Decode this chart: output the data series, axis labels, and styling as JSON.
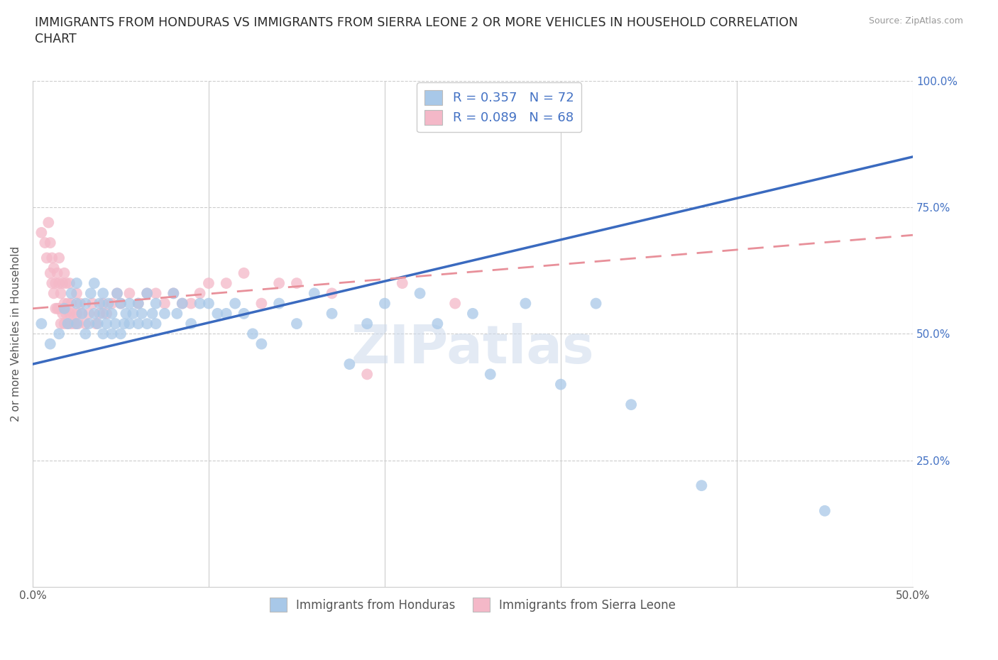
{
  "title_line1": "IMMIGRANTS FROM HONDURAS VS IMMIGRANTS FROM SIERRA LEONE 2 OR MORE VEHICLES IN HOUSEHOLD CORRELATION",
  "title_line2": "CHART",
  "source": "Source: ZipAtlas.com",
  "ylabel": "2 or more Vehicles in Household",
  "xlim": [
    0.0,
    0.5
  ],
  "ylim": [
    0.0,
    1.0
  ],
  "blue_color": "#a8c8e8",
  "pink_color": "#f4b8c8",
  "blue_line_color": "#3a6abf",
  "pink_line_color": "#e8909a",
  "watermark": "ZIPatlas",
  "honduras_x": [
    0.005,
    0.01,
    0.015,
    0.018,
    0.02,
    0.022,
    0.025,
    0.025,
    0.025,
    0.028,
    0.03,
    0.03,
    0.032,
    0.033,
    0.035,
    0.035,
    0.037,
    0.038,
    0.04,
    0.04,
    0.04,
    0.042,
    0.043,
    0.045,
    0.045,
    0.047,
    0.048,
    0.05,
    0.05,
    0.052,
    0.053,
    0.055,
    0.055,
    0.057,
    0.06,
    0.06,
    0.062,
    0.065,
    0.065,
    0.068,
    0.07,
    0.07,
    0.075,
    0.08,
    0.082,
    0.085,
    0.09,
    0.095,
    0.1,
    0.105,
    0.11,
    0.115,
    0.12,
    0.125,
    0.13,
    0.14,
    0.15,
    0.16,
    0.17,
    0.18,
    0.19,
    0.2,
    0.22,
    0.23,
    0.25,
    0.26,
    0.28,
    0.3,
    0.32,
    0.34,
    0.38,
    0.45
  ],
  "honduras_y": [
    0.52,
    0.48,
    0.5,
    0.55,
    0.52,
    0.58,
    0.52,
    0.56,
    0.6,
    0.54,
    0.5,
    0.56,
    0.52,
    0.58,
    0.54,
    0.6,
    0.52,
    0.56,
    0.5,
    0.54,
    0.58,
    0.52,
    0.56,
    0.5,
    0.54,
    0.52,
    0.58,
    0.5,
    0.56,
    0.52,
    0.54,
    0.52,
    0.56,
    0.54,
    0.52,
    0.56,
    0.54,
    0.52,
    0.58,
    0.54,
    0.52,
    0.56,
    0.54,
    0.58,
    0.54,
    0.56,
    0.52,
    0.56,
    0.56,
    0.54,
    0.54,
    0.56,
    0.54,
    0.5,
    0.48,
    0.56,
    0.52,
    0.58,
    0.54,
    0.44,
    0.52,
    0.56,
    0.58,
    0.52,
    0.54,
    0.42,
    0.56,
    0.4,
    0.56,
    0.36,
    0.2,
    0.15
  ],
  "sierraleone_x": [
    0.005,
    0.007,
    0.008,
    0.009,
    0.01,
    0.01,
    0.011,
    0.011,
    0.012,
    0.012,
    0.013,
    0.013,
    0.014,
    0.014,
    0.015,
    0.015,
    0.015,
    0.016,
    0.016,
    0.017,
    0.017,
    0.018,
    0.018,
    0.018,
    0.019,
    0.019,
    0.02,
    0.02,
    0.021,
    0.021,
    0.022,
    0.022,
    0.023,
    0.024,
    0.025,
    0.025,
    0.026,
    0.027,
    0.028,
    0.03,
    0.032,
    0.034,
    0.036,
    0.038,
    0.04,
    0.042,
    0.045,
    0.048,
    0.05,
    0.055,
    0.06,
    0.065,
    0.07,
    0.075,
    0.08,
    0.085,
    0.09,
    0.095,
    0.1,
    0.11,
    0.12,
    0.13,
    0.14,
    0.15,
    0.17,
    0.19,
    0.21,
    0.24
  ],
  "sierraleone_y": [
    0.7,
    0.68,
    0.65,
    0.72,
    0.62,
    0.68,
    0.6,
    0.65,
    0.58,
    0.63,
    0.55,
    0.6,
    0.55,
    0.62,
    0.55,
    0.6,
    0.65,
    0.52,
    0.58,
    0.54,
    0.6,
    0.52,
    0.56,
    0.62,
    0.54,
    0.6,
    0.52,
    0.56,
    0.54,
    0.6,
    0.52,
    0.56,
    0.54,
    0.52,
    0.54,
    0.58,
    0.52,
    0.56,
    0.54,
    0.52,
    0.54,
    0.56,
    0.52,
    0.54,
    0.56,
    0.54,
    0.56,
    0.58,
    0.56,
    0.58,
    0.56,
    0.58,
    0.58,
    0.56,
    0.58,
    0.56,
    0.56,
    0.58,
    0.6,
    0.6,
    0.62,
    0.56,
    0.6,
    0.6,
    0.58,
    0.42,
    0.6,
    0.56
  ],
  "blue_trend_x0": 0.0,
  "blue_trend_y0": 0.44,
  "blue_trend_x1": 0.5,
  "blue_trend_y1": 0.85,
  "pink_trend_x0": 0.0,
  "pink_trend_y0": 0.55,
  "pink_trend_x1": 0.24,
  "pink_trend_y1": 0.62
}
